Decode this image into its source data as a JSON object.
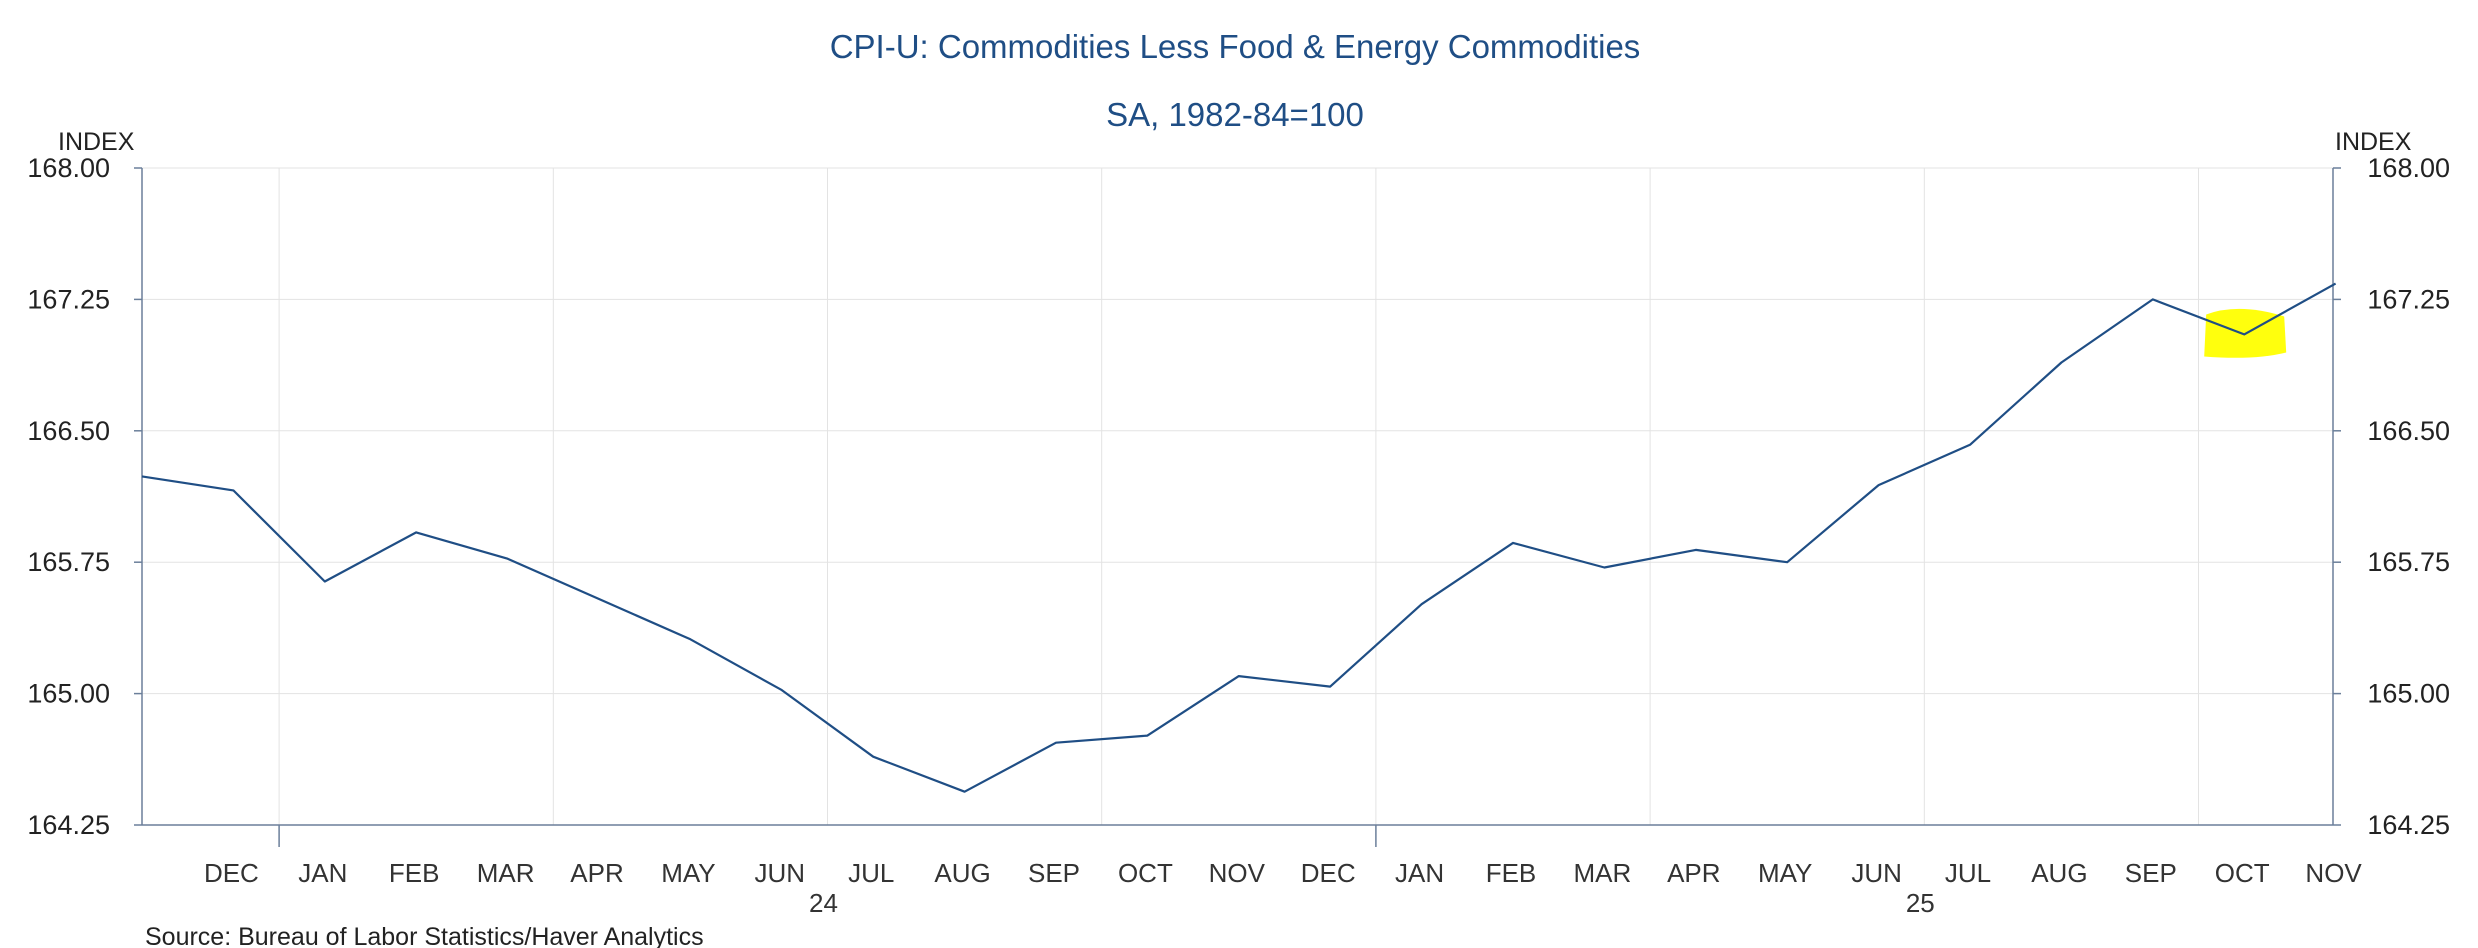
{
  "chart_data": {
    "type": "line",
    "title": "CPI-U: Commodities Less Food & Energy Commodities",
    "subtitle": "SA, 1982-84=100",
    "ylabel_left": "INDEX",
    "ylabel_right": "INDEX",
    "ylim": [
      164.25,
      168.0
    ],
    "yticks": [
      "168.00",
      "167.25",
      "166.50",
      "165.75",
      "165.00",
      "164.25"
    ],
    "ytick_values": [
      168.0,
      167.25,
      166.5,
      165.75,
      165.0,
      164.25
    ],
    "x_month_labels": [
      "DEC",
      "JAN",
      "FEB",
      "MAR",
      "APR",
      "MAY",
      "JUN",
      "JUL",
      "AUG",
      "SEP",
      "OCT",
      "NOV",
      "DEC",
      "JAN",
      "FEB",
      "MAR",
      "APR",
      "MAY",
      "JUN",
      "JUL",
      "AUG",
      "SEP",
      "OCT",
      "NOV"
    ],
    "x_year_labels": [
      "24",
      "25"
    ],
    "grid": true,
    "legend": "none",
    "series": [
      {
        "color": "#1f4e85",
        "x": [
          "2023-11",
          "2023-12",
          "2024-01",
          "2024-02",
          "2024-03",
          "2024-04",
          "2024-05",
          "2024-06",
          "2024-07",
          "2024-08",
          "2024-09",
          "2024-10",
          "2024-11",
          "2024-12",
          "2025-01",
          "2025-02",
          "2025-03",
          "2025-04",
          "2025-05",
          "2025-06",
          "2025-07",
          "2025-08",
          "2025-09",
          "2025-10",
          "2025-11"
        ],
        "values": [
          166.24,
          166.16,
          165.64,
          165.92,
          165.77,
          165.54,
          165.31,
          165.02,
          164.64,
          164.44,
          164.72,
          164.76,
          165.1,
          165.04,
          165.51,
          165.86,
          165.72,
          165.82,
          165.75,
          166.19,
          166.42,
          166.89,
          167.25,
          167.05,
          167.34
        ]
      }
    ],
    "highlight": {
      "x": "2025-10",
      "color": "#ffff00"
    }
  },
  "source": "Source:  Bureau of Labor Statistics/Haver Analytics"
}
